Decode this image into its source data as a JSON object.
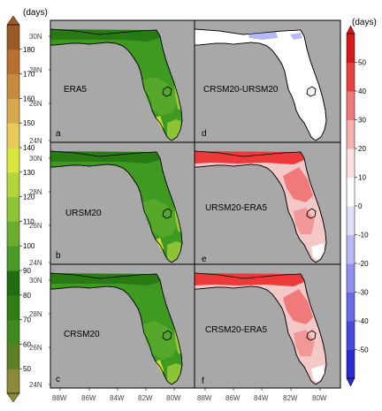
{
  "units": "(days)",
  "left_colorbar": {
    "ticks": [
      "50",
      "60",
      "70",
      "80",
      "90",
      "100",
      "110",
      "120",
      "130",
      "140",
      "150",
      "160",
      "170",
      "180"
    ],
    "colors": [
      "#8a8a3a",
      "#5e7e26",
      "#3f8a1e",
      "#2f7d14",
      "#1f6e10",
      "#4a9a28",
      "#6aac2e",
      "#8cc234",
      "#b2d63a",
      "#d9e63e",
      "#e8c95a",
      "#d8a84e",
      "#c88a3e",
      "#b86f30",
      "#9c5a26"
    ]
  },
  "right_colorbar": {
    "ticks": [
      "-50",
      "-40",
      "-30",
      "-20",
      "-10",
      "0",
      "10",
      "20",
      "30",
      "40",
      "50"
    ],
    "colors": [
      "#2a2ad0",
      "#4848e0",
      "#6a6ae8",
      "#9090f0",
      "#b8b8f6",
      "#e0e0fa",
      "#ffffff",
      "#fde0e0",
      "#f8b0b0",
      "#f07878",
      "#e84040",
      "#d81818"
    ]
  },
  "lat_labels": [
    "30N",
    "28N",
    "26N",
    "24N"
  ],
  "lon_labels": [
    "88W",
    "86W",
    "84W",
    "82W",
    "80W"
  ],
  "panels": [
    {
      "letter": "a",
      "title": "ERA5",
      "type": "abs"
    },
    {
      "letter": "b",
      "title": "URSM20",
      "type": "abs"
    },
    {
      "letter": "c",
      "title": "CRSM20",
      "type": "abs"
    },
    {
      "letter": "d",
      "title": "CRSM20-URSM20",
      "type": "diff_small"
    },
    {
      "letter": "e",
      "title": "URSM20-ERA5",
      "type": "diff"
    },
    {
      "letter": "f",
      "title": "CRSM20-ERA5",
      "type": "diff"
    }
  ],
  "colors": {
    "ocean": "#a8a8a8",
    "land_abs": "#3f9a22",
    "land_abs_dark": "#2a7a14",
    "land_abs_light": "#8cc436",
    "land_diff_light": "#f5c8c8",
    "land_diff_strong": "#ec3a3a",
    "land_diff_zero": "#ffffff",
    "neg_patch": "#b8b8f4"
  }
}
